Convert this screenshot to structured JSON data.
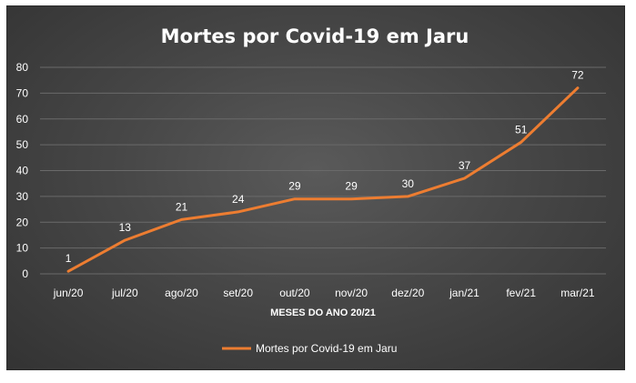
{
  "chart_data": {
    "type": "line",
    "title": "Mortes por Covid-19 em Jaru",
    "xlabel": "MESES DO ANO 20/21",
    "ylabel": "",
    "categories": [
      "jun/20",
      "jul/20",
      "ago/20",
      "set/20",
      "out/20",
      "nov/20",
      "dez/20",
      "jan/21",
      "fev/21",
      "mar/21"
    ],
    "series": [
      {
        "name": "Mortes por Covid-19 em Jaru",
        "values": [
          1,
          13,
          21,
          24,
          29,
          29,
          30,
          37,
          51,
          72
        ],
        "color": "#ed7d31"
      }
    ],
    "ylim": [
      0,
      80
    ],
    "yticks": [
      0,
      10,
      20,
      30,
      40,
      50,
      60,
      70,
      80
    ],
    "grid": true,
    "legend_position": "bottom",
    "data_labels": true
  },
  "colors": {
    "background": "#474747",
    "line": "#ed7d31",
    "grid": "#6a6a6a",
    "text": "#ffffff"
  }
}
